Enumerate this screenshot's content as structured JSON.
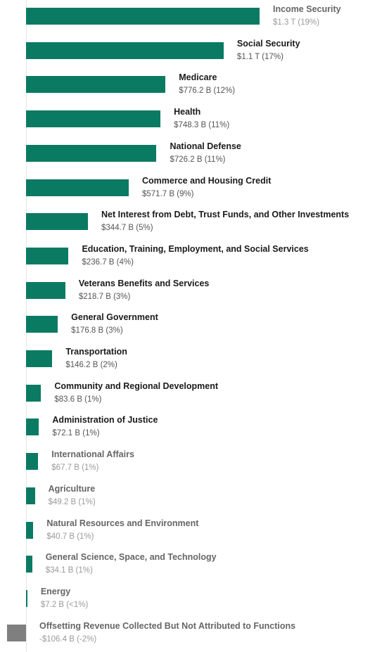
{
  "chart_data": {
    "type": "bar",
    "orientation": "horizontal",
    "unit": "billion USD",
    "colors": {
      "positive": "#0b7a62",
      "negative": "#7f7f7f"
    },
    "bars": [
      {
        "category": "Income Security",
        "value": 1300,
        "label": "$1.3 T (19%)",
        "faded": true
      },
      {
        "category": "Social Security",
        "value": 1100,
        "label": "$1.1 T (17%)",
        "faded": false
      },
      {
        "category": "Medicare",
        "value": 776.2,
        "label": "$776.2 B (12%)",
        "faded": false
      },
      {
        "category": "Health",
        "value": 748.3,
        "label": "$748.3 B (11%)",
        "faded": false
      },
      {
        "category": "National Defense",
        "value": 726.2,
        "label": "$726.2 B (11%)",
        "faded": false
      },
      {
        "category": "Commerce and Housing Credit",
        "value": 571.7,
        "label": "$571.7 B (9%)",
        "faded": false
      },
      {
        "category": "Net Interest from Debt, Trust Funds, and Other Investments",
        "value": 344.7,
        "label": "$344.7 B (5%)",
        "faded": false
      },
      {
        "category": "Education, Training, Employment, and Social Services",
        "value": 236.7,
        "label": "$236.7 B (4%)",
        "faded": false
      },
      {
        "category": "Veterans Benefits and Services",
        "value": 218.7,
        "label": "$218.7 B (3%)",
        "faded": false
      },
      {
        "category": "General Government",
        "value": 176.8,
        "label": "$176.8 B (3%)",
        "faded": false
      },
      {
        "category": "Transportation",
        "value": 146.2,
        "label": "$146.2 B (2%)",
        "faded": false
      },
      {
        "category": "Community and Regional Development",
        "value": 83.6,
        "label": "$83.6 B (1%)",
        "faded": false
      },
      {
        "category": "Administration of Justice",
        "value": 72.1,
        "label": "$72.1 B (1%)",
        "faded": false
      },
      {
        "category": "International Affairs",
        "value": 67.7,
        "label": "$67.7 B (1%)",
        "faded": true
      },
      {
        "category": "Agriculture",
        "value": 49.2,
        "label": "$49.2 B (1%)",
        "faded": true
      },
      {
        "category": "Natural Resources and Environment",
        "value": 40.7,
        "label": "$40.7 B (1%)",
        "faded": true
      },
      {
        "category": "General Science, Space, and Technology",
        "value": 34.1,
        "label": "$34.1 B (1%)",
        "faded": true
      },
      {
        "category": "Energy",
        "value": 7.2,
        "label": "$7.2 B (<1%)",
        "faded": true
      },
      {
        "category": "Offsetting Revenue Collected But Not Attributed to Functions",
        "value": -106.4,
        "label": "-$106.4 B (-2%)",
        "faded": true
      }
    ]
  }
}
